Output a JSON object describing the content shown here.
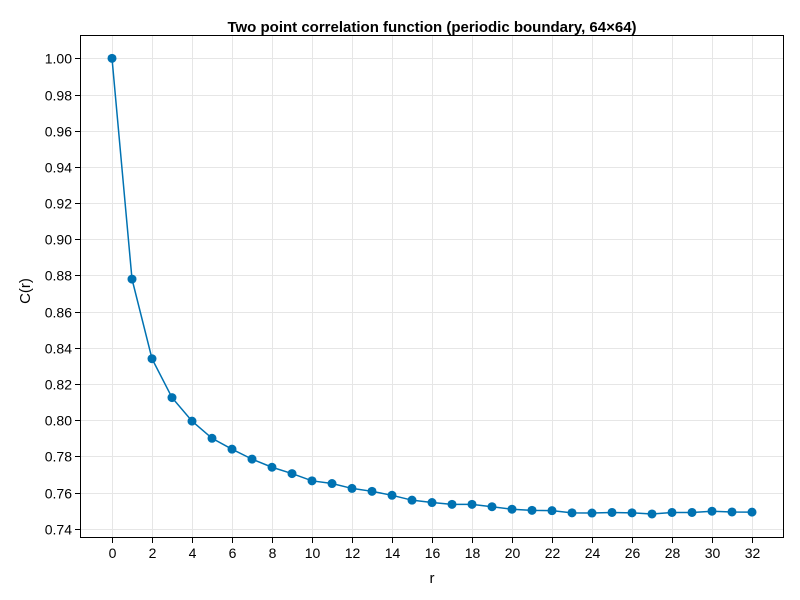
{
  "chart_data": {
    "type": "line",
    "title": "Two point correlation function (periodic boundary, 64×64)",
    "xlabel": "r",
    "ylabel": "C(r)",
    "xlim": [
      -1.6,
      33.6
    ],
    "ylim": [
      0.7349,
      1.0129
    ],
    "grid": true,
    "xticks": [
      0,
      2,
      4,
      6,
      8,
      10,
      12,
      14,
      16,
      18,
      20,
      22,
      24,
      26,
      28,
      30,
      32
    ],
    "yticks": [
      0.74,
      0.76,
      0.78,
      0.8,
      0.82,
      0.84,
      0.86,
      0.88,
      0.9,
      0.92,
      0.94,
      0.96,
      0.98,
      1.0
    ],
    "ytick_labels": [
      "0.74",
      "0.76",
      "0.78",
      "0.80",
      "0.82",
      "0.84",
      "0.86",
      "0.88",
      "0.90",
      "0.92",
      "0.94",
      "0.96",
      "0.98",
      "1.00"
    ],
    "color": "#0072b2",
    "x": [
      0,
      1,
      2,
      3,
      4,
      5,
      6,
      7,
      8,
      9,
      10,
      11,
      12,
      13,
      14,
      15,
      16,
      17,
      18,
      19,
      20,
      21,
      22,
      23,
      24,
      25,
      26,
      27,
      28,
      29,
      30,
      31,
      32
    ],
    "y": [
      1.0,
      0.878,
      0.834,
      0.8125,
      0.7995,
      0.79,
      0.784,
      0.7785,
      0.774,
      0.7705,
      0.7665,
      0.765,
      0.7623,
      0.7607,
      0.7585,
      0.7558,
      0.7545,
      0.7535,
      0.7535,
      0.7522,
      0.7508,
      0.7502,
      0.75,
      0.7488,
      0.7487,
      0.749,
      0.7488,
      0.7482,
      0.749,
      0.749,
      0.7497,
      0.7493,
      0.7492
    ]
  }
}
